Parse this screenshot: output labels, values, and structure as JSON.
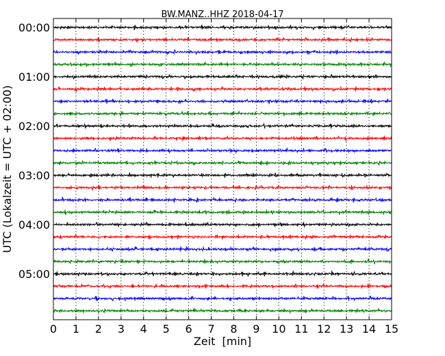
{
  "chart_data": {
    "type": "line",
    "title": "BW.MANZ..HHZ 2018-04-17",
    "xlabel": "Zeit  [min]",
    "ylabel": "UTC (Lokalzeit = UTC + 02:00)",
    "xlim": [
      0,
      15
    ],
    "x_ticks": [
      "0",
      "1",
      "2",
      "3",
      "4",
      "5",
      "6",
      "7",
      "8",
      "9",
      "10",
      "11",
      "12",
      "13",
      "14",
      "15"
    ],
    "y_ticks": [
      "00:00",
      "01:00",
      "02:00",
      "03:00",
      "04:00",
      "05:00"
    ],
    "grid": "vertical dotted lines at each minute",
    "colors": [
      "#000000",
      "#ff0000",
      "#0000ff",
      "#007f00"
    ],
    "series": [
      {
        "start": "00:00",
        "color": "#000000"
      },
      {
        "start": "00:15",
        "color": "#ff0000"
      },
      {
        "start": "00:30",
        "color": "#0000ff"
      },
      {
        "start": "00:45",
        "color": "#007f00"
      },
      {
        "start": "01:00",
        "color": "#000000"
      },
      {
        "start": "01:15",
        "color": "#ff0000"
      },
      {
        "start": "01:30",
        "color": "#0000ff"
      },
      {
        "start": "01:45",
        "color": "#007f00"
      },
      {
        "start": "02:00",
        "color": "#000000"
      },
      {
        "start": "02:15",
        "color": "#ff0000"
      },
      {
        "start": "02:30",
        "color": "#0000ff"
      },
      {
        "start": "02:45",
        "color": "#007f00"
      },
      {
        "start": "03:00",
        "color": "#000000"
      },
      {
        "start": "03:15",
        "color": "#ff0000"
      },
      {
        "start": "03:30",
        "color": "#0000ff"
      },
      {
        "start": "03:45",
        "color": "#007f00"
      },
      {
        "start": "04:00",
        "color": "#000000"
      },
      {
        "start": "04:15",
        "color": "#ff0000"
      },
      {
        "start": "04:30",
        "color": "#0000ff"
      },
      {
        "start": "04:45",
        "color": "#007f00"
      },
      {
        "start": "05:00",
        "color": "#000000"
      },
      {
        "start": "05:15",
        "color": "#ff0000"
      },
      {
        "start": "05:30",
        "color": "#0000ff"
      },
      {
        "start": "05:45",
        "color": "#007f00"
      }
    ]
  }
}
